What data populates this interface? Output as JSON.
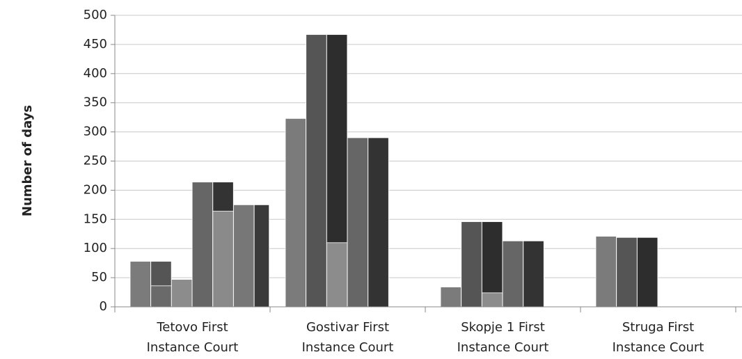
{
  "chart_data": {
    "type": "bar",
    "y_label": "Number of days",
    "categories": [
      "Tetovo First Instance Court",
      "Gostivar First Instance Court",
      "Skopje 1 First Instance Court",
      "Struga First Instance Court"
    ],
    "series": [
      {
        "color": "#7b7b7b",
        "values": [
          78,
          323,
          34,
          121
        ]
      },
      {
        "color": "#555555",
        "values": [
          78,
          467,
          146,
          119
        ]
      },
      {
        "color": "#6a6a6a",
        "values": [
          36,
          null,
          null,
          null
        ]
      },
      {
        "color": "#2d2d2d",
        "values": [
          null,
          467,
          146,
          119
        ]
      },
      {
        "color": "#8c8c8c",
        "values": [
          47,
          110,
          24,
          null
        ]
      },
      {
        "color": "#666666",
        "values": [
          214,
          290,
          113,
          null
        ]
      },
      {
        "color": "#333333",
        "values": [
          214,
          290,
          113,
          null
        ]
      },
      {
        "color": "#8a8a8a",
        "values": [
          164,
          null,
          null,
          null
        ]
      },
      {
        "color": "#777777",
        "values": [
          175,
          null,
          null,
          null
        ]
      },
      {
        "color": "#3a3a3a",
        "values": [
          175,
          null,
          null,
          null
        ]
      }
    ],
    "ylim": [
      0,
      500
    ],
    "yticks": [
      0,
      50,
      100,
      150,
      200,
      250,
      300,
      350,
      400,
      450,
      500
    ],
    "grid": true
  }
}
